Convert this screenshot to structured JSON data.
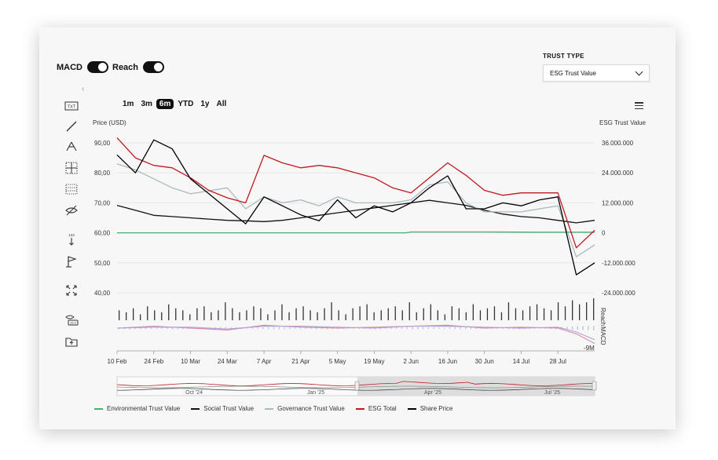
{
  "toggles": [
    {
      "label": "MACD",
      "on": true
    },
    {
      "label": "Reach",
      "on": true
    }
  ],
  "trust_type": {
    "label": "TRUST TYPE",
    "selected": "ESG Trust Value"
  },
  "ranges": [
    {
      "label": "1m",
      "active": false
    },
    {
      "label": "3m",
      "active": false
    },
    {
      "label": "6m",
      "active": true
    },
    {
      "label": "YTD",
      "active": false
    },
    {
      "label": "1y",
      "active": false
    },
    {
      "label": "All",
      "active": false
    }
  ],
  "toolbar_icons": [
    "text-icon",
    "line-icon",
    "fork-icon",
    "crosshair-grid-icon",
    "dotted-grid-icon",
    "hide-icon",
    "measure-icon",
    "flag-icon",
    "fullscreen-icon",
    "eye-label-icon",
    "folder-icon"
  ],
  "chart_data": {
    "type": "line",
    "y_left_label": "Price (USD)",
    "y_right_label": "ESG Trust Value",
    "y_left_ticks": [
      "90,00",
      "80,00",
      "70,00",
      "60,00",
      "50,00",
      "40,00"
    ],
    "y_left_range": [
      40,
      90
    ],
    "y_right_ticks": [
      "36.000.000",
      "24.000.000",
      "12.000.000",
      "0",
      "-12.000.000",
      "-24.000.000"
    ],
    "y_right_range": [
      -24000000,
      36000000
    ],
    "x_ticks": [
      "10 Feb",
      "24 Feb",
      "10 Mar",
      "24 Mar",
      "7 Apr",
      "21 Apr",
      "5 May",
      "19 May",
      "2 Jun",
      "16 Jun",
      "30 Jun",
      "14 Jul",
      "28 Jul"
    ],
    "x_range_days": [
      0,
      182
    ],
    "reach_label": "Reach",
    "macd_label": "MACD",
    "macd_min_label": "-9M",
    "navigator_labels": [
      "Oct '24",
      "Jan '25",
      "Apr '25",
      "Jul '25"
    ],
    "colors": {
      "environmental": "#3cb371",
      "social": "#111111",
      "governance": "#a9b9bf",
      "esg_total": "#c0191f",
      "share_price": "#000000",
      "reach_bar": "#333333",
      "macd_a": "#d98ca0",
      "macd_b": "#b39ddb",
      "macd_hist": "#b8c7d9"
    },
    "series": [
      {
        "name": "Environmental Trust Value",
        "axis": "left",
        "x": [
          0,
          25,
          50,
          75,
          100,
          110,
          112,
          140,
          160,
          182
        ],
        "y": [
          60.0,
          60.0,
          60.0,
          60.0,
          60.0,
          60.0,
          60.3,
          60.3,
          60.2,
          60.2
        ]
      },
      {
        "name": "Social Trust Value",
        "axis": "right",
        "x": [
          0,
          7,
          14,
          21,
          28,
          35,
          42,
          49,
          56,
          63,
          70,
          77,
          84,
          91,
          98,
          105,
          112,
          119,
          126,
          133,
          140,
          147,
          154,
          161,
          168,
          175,
          182
        ],
        "y": [
          11000000,
          9000000,
          7000000,
          6500000,
          6000000,
          5500000,
          5000000,
          4800000,
          4500000,
          5000000,
          6000000,
          7000000,
          8000000,
          9000000,
          10000000,
          11000000,
          12000000,
          13000000,
          12000000,
          11000000,
          9000000,
          7500000,
          6500000,
          6000000,
          5000000,
          4000000,
          5000000
        ]
      },
      {
        "name": "Governance Trust Value",
        "axis": "left",
        "x": [
          0,
          7,
          14,
          21,
          28,
          35,
          42,
          49,
          56,
          63,
          70,
          77,
          84,
          91,
          98,
          105,
          112,
          119,
          126,
          133,
          140,
          147,
          154,
          161,
          168,
          175,
          182
        ],
        "y": [
          83,
          81,
          78,
          75,
          73,
          74,
          75,
          68,
          72,
          70,
          71,
          69,
          72,
          70,
          70,
          70,
          71,
          76,
          77,
          70,
          67,
          67,
          67,
          68,
          69,
          52,
          56
        ]
      },
      {
        "name": "ESG Total",
        "axis": "right",
        "x": [
          0,
          7,
          14,
          21,
          28,
          35,
          42,
          49,
          56,
          63,
          70,
          77,
          84,
          91,
          98,
          105,
          112,
          119,
          126,
          133,
          140,
          147,
          154,
          161,
          168,
          175,
          182
        ],
        "y": [
          38000000,
          30000000,
          27000000,
          26000000,
          22000000,
          17000000,
          14000000,
          12000000,
          31000000,
          28000000,
          26000000,
          27000000,
          26000000,
          24000000,
          22000000,
          18000000,
          16000000,
          22000000,
          28000000,
          23000000,
          17000000,
          15000000,
          16000000,
          16000000,
          16000000,
          -6000000,
          1000000
        ]
      },
      {
        "name": "Share Price",
        "axis": "left",
        "x": [
          0,
          7,
          14,
          21,
          28,
          35,
          42,
          49,
          56,
          63,
          70,
          77,
          84,
          91,
          98,
          105,
          112,
          119,
          126,
          133,
          140,
          147,
          154,
          161,
          168,
          175,
          182
        ],
        "y": [
          86,
          80,
          91,
          88,
          78,
          73,
          68,
          63,
          72,
          69,
          66,
          64,
          71,
          65,
          69,
          67,
          70,
          75,
          79,
          68,
          68,
          70,
          69,
          71,
          72,
          46,
          50
        ]
      }
    ],
    "reach": [
      5,
      4,
      6,
      3,
      7,
      5,
      4,
      8,
      6,
      5,
      3,
      6,
      7,
      4,
      5,
      9,
      6,
      4,
      5,
      7,
      6,
      3,
      5,
      8,
      4,
      6,
      7,
      5,
      4,
      6,
      9,
      5,
      3,
      6,
      7,
      8,
      4,
      5,
      6,
      7,
      5,
      9,
      4,
      6,
      8,
      5,
      3,
      7,
      6,
      4,
      8,
      5,
      6,
      7,
      4,
      9,
      6,
      5,
      7,
      8,
      6,
      5,
      9,
      7,
      10,
      8,
      9,
      11
    ],
    "macd": {
      "x": [
        0,
        14,
        28,
        42,
        56,
        70,
        84,
        98,
        112,
        126,
        140,
        154,
        168,
        175,
        182
      ],
      "line_a": [
        0,
        1000000,
        0,
        -1000000,
        1500000,
        500000,
        0,
        500000,
        1000000,
        1500000,
        0,
        500000,
        0,
        -3000000,
        -8000000
      ],
      "line_b": [
        0,
        500000,
        500000,
        -500000,
        1000000,
        1000000,
        500000,
        0,
        1000000,
        1000000,
        500000,
        0,
        500000,
        -2000000,
        -6000000
      ]
    },
    "legend": [
      "Environmental Trust Value",
      "Social Trust Value",
      "Governance Trust Value",
      "ESG Total",
      "Share Price"
    ]
  }
}
